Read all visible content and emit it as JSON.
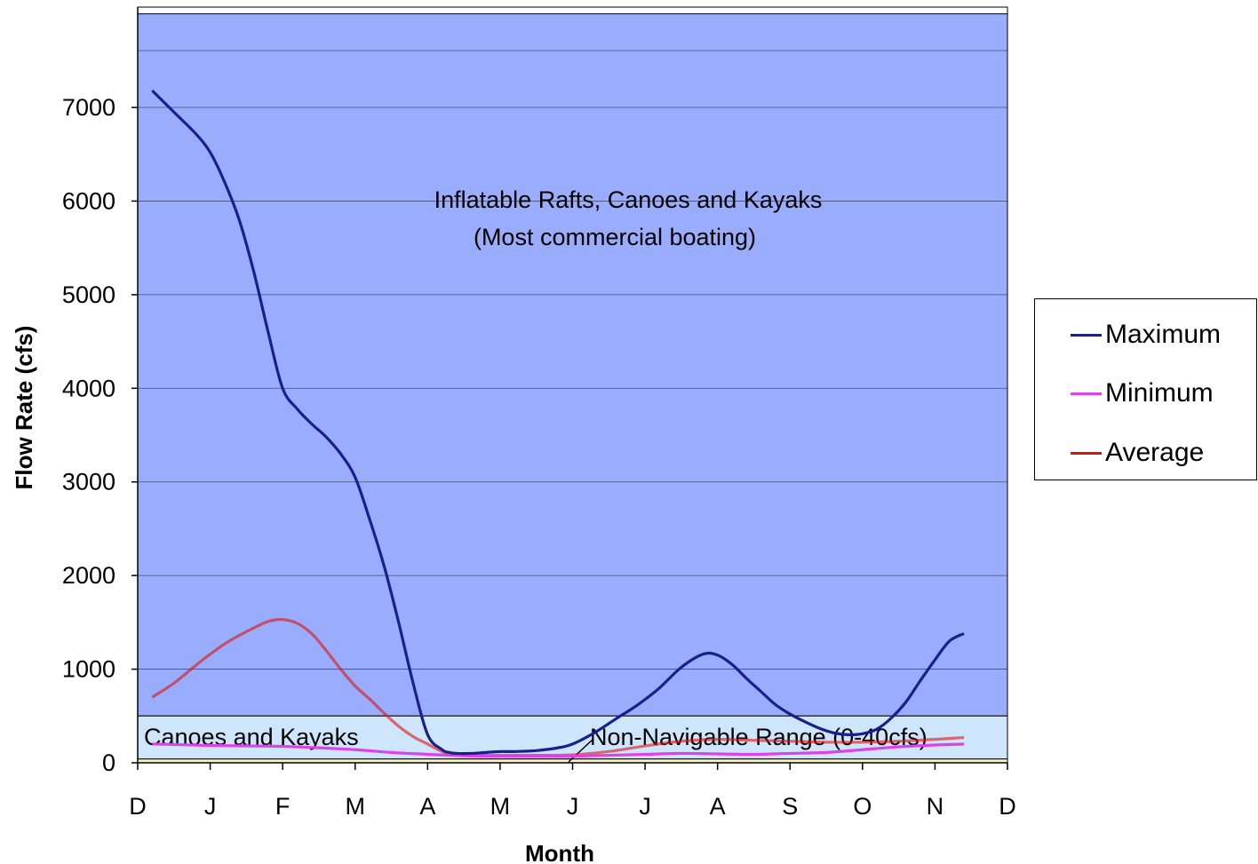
{
  "chart_data": {
    "type": "line",
    "xlabel": "Month",
    "ylabel": "Flow Rate (cfs)",
    "x_tick_labels": [
      "D",
      "J",
      "F",
      "M",
      "A",
      "M",
      "J",
      "J",
      "A",
      "S",
      "O",
      "N",
      "D"
    ],
    "y_ticks": [
      0,
      1000,
      2000,
      3000,
      4000,
      5000,
      6000,
      7000
    ],
    "ylim": [
      0,
      8000
    ],
    "xlim": [
      0,
      12
    ],
    "grid": "horizontal",
    "legend_position": "right",
    "bands": [
      {
        "label": "Inflatable Rafts, Canoes and Kayaks",
        "label2": "(Most commercial boating)",
        "from": 500,
        "to": 8000,
        "color": "#9aadfc"
      },
      {
        "label": "Canoes and Kayaks",
        "from": 40,
        "to": 500,
        "color": "#cde6fb"
      },
      {
        "label": "Non-Navigable Range (0-40cfs)",
        "from": 0,
        "to": 40,
        "color": "#f7f5c0"
      }
    ],
    "series": [
      {
        "name": "Maximum",
        "color": "#1a1f8c",
        "x": [
          0.2,
          0.5,
          0.8,
          1.0,
          1.2,
          1.4,
          1.6,
          1.8,
          2.0,
          2.2,
          2.4,
          2.6,
          2.8,
          3.0,
          3.2,
          3.4,
          3.6,
          3.8,
          4.0,
          4.2,
          4.3,
          4.4,
          4.6,
          4.8,
          5.0,
          5.2,
          5.5,
          5.8,
          6.0,
          6.3,
          6.6,
          6.9,
          7.2,
          7.5,
          7.8,
          8.0,
          8.2,
          8.4,
          8.6,
          8.8,
          9.0,
          9.2,
          9.4,
          9.6,
          9.8,
          10.0,
          10.2,
          10.4,
          10.6,
          10.8,
          11.0,
          11.2,
          11.4
        ],
        "y": [
          7180,
          6950,
          6720,
          6520,
          6200,
          5800,
          5250,
          4600,
          4000,
          3780,
          3620,
          3480,
          3300,
          3050,
          2600,
          2100,
          1500,
          850,
          300,
          140,
          110,
          100,
          100,
          110,
          120,
          120,
          130,
          160,
          200,
          320,
          470,
          620,
          800,
          1020,
          1160,
          1150,
          1050,
          900,
          760,
          620,
          520,
          440,
          370,
          320,
          300,
          310,
          360,
          480,
          650,
          880,
          1100,
          1300,
          1380
        ]
      },
      {
        "name": "Minimum",
        "color": "#e040e8",
        "x": [
          0.2,
          0.5,
          1.0,
          1.5,
          2.0,
          2.5,
          3.0,
          3.5,
          4.0,
          4.5,
          5.0,
          5.5,
          6.0,
          6.5,
          7.0,
          7.5,
          8.0,
          8.5,
          9.0,
          9.5,
          10.0,
          10.5,
          11.0,
          11.4
        ],
        "y": [
          200,
          195,
          185,
          180,
          175,
          160,
          140,
          110,
          90,
          75,
          70,
          70,
          70,
          80,
          90,
          100,
          95,
          90,
          100,
          110,
          140,
          170,
          190,
          200
        ]
      },
      {
        "name": "Average",
        "color": "#e01010",
        "x": [
          0.2,
          0.5,
          0.8,
          1.0,
          1.2,
          1.4,
          1.6,
          1.8,
          2.0,
          2.2,
          2.4,
          2.6,
          2.8,
          3.0,
          3.2,
          3.4,
          3.6,
          3.8,
          4.0,
          4.2,
          4.4,
          4.6,
          5.0,
          5.5,
          6.0,
          6.5,
          7.0,
          7.5,
          8.0,
          8.5,
          9.0,
          9.5,
          10.0,
          10.5,
          11.0,
          11.4
        ],
        "y": [
          700,
          850,
          1040,
          1160,
          1270,
          1360,
          1440,
          1510,
          1530,
          1490,
          1380,
          1200,
          1000,
          820,
          680,
          530,
          390,
          280,
          200,
          120,
          90,
          80,
          80,
          80,
          85,
          120,
          180,
          230,
          250,
          240,
          230,
          220,
          220,
          230,
          250,
          270
        ]
      }
    ]
  }
}
